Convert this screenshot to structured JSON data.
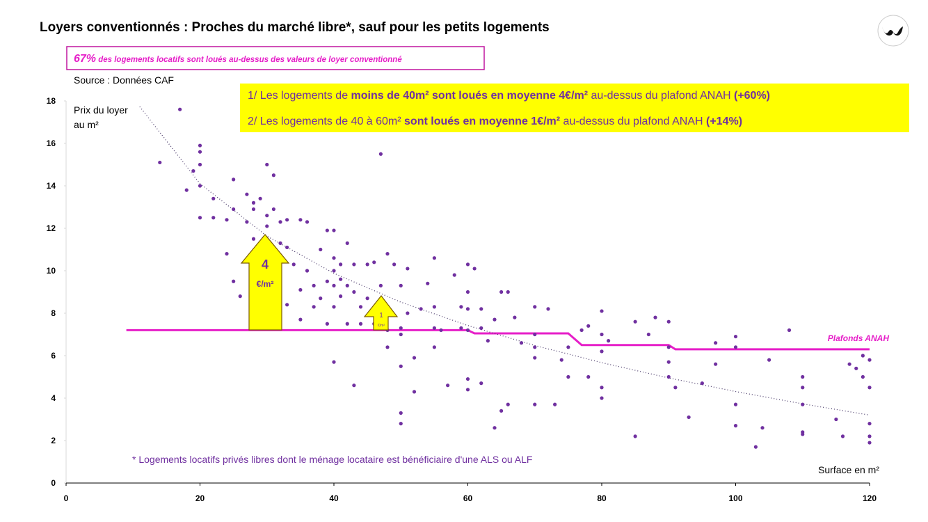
{
  "chart_data": {
    "type": "scatter",
    "title": "Loyers conventionnés : Proches du marché libre*, sauf pour les petits logements",
    "banner": {
      "highlight": "67%",
      "text": " des logements locatifs sont loués au-dessus des valeurs de loyer conventionné"
    },
    "source": "Source : Données CAF",
    "callout": [
      [
        "1/ Les logements de ",
        "moins de 40m² sont loués en moyenne 4€/m²",
        " au-dessus du plafond ANAH ",
        "(+60%)"
      ],
      [
        "2/ Les logements de 40 à 60m² ",
        "sont loués en moyenne 1€/m²",
        " au-dessus du plafond ANAH ",
        "(+14%)"
      ]
    ],
    "arrows": [
      {
        "value": "4",
        "unit": "€/m²"
      },
      {
        "value": "1",
        "unit": "€/m²"
      }
    ],
    "footnote": "* Logements locatifs privés libres dont le ménage locataire est bénéficiaire d'une ALS ou ALF",
    "y_label": [
      "Prix du loyer",
      "au m²"
    ],
    "x_label": "Surface en m²",
    "color": "#7030a0",
    "x": [
      14,
      17,
      18,
      19,
      20,
      20,
      20,
      20,
      20,
      22,
      22,
      24,
      25,
      25,
      24,
      25,
      26,
      27,
      27,
      28,
      28,
      28,
      29,
      30,
      30,
      30,
      31,
      31,
      32,
      32,
      33,
      33,
      33,
      34,
      35,
      35,
      35,
      36,
      36,
      37,
      37,
      38,
      38,
      39,
      39,
      39,
      40,
      40,
      40,
      40,
      40,
      40,
      41,
      41,
      41,
      42,
      42,
      42,
      43,
      43,
      44,
      44,
      43,
      45,
      45,
      46,
      46,
      47,
      47,
      48,
      48,
      48,
      49,
      50,
      50,
      50,
      50,
      50,
      50,
      51,
      51,
      52,
      52,
      53,
      54,
      55,
      55,
      55,
      55,
      56,
      57,
      58,
      59,
      59,
      60,
      60,
      60,
      60,
      60,
      60,
      61,
      62,
      62,
      62,
      63,
      64,
      64,
      65,
      65,
      66,
      66,
      67,
      68,
      70,
      70,
      70,
      70,
      70,
      72,
      73,
      74,
      75,
      75,
      77,
      78,
      78,
      80,
      80,
      80,
      80,
      80,
      81,
      85,
      85,
      88,
      87,
      90,
      90,
      90,
      90,
      91,
      93,
      95,
      97,
      97,
      100,
      100,
      100,
      100,
      103,
      104,
      105,
      108,
      110,
      110,
      110,
      110,
      110,
      115,
      116,
      117,
      118,
      119,
      119,
      120,
      120,
      120,
      120,
      120
    ],
    "values": [
      15.1,
      17.6,
      13.8,
      14.7,
      15.9,
      15.6,
      15,
      14,
      12.5,
      13.4,
      12.5,
      12.4,
      14.3,
      12.9,
      10.8,
      9.5,
      8.8,
      13.6,
      12.3,
      13.2,
      12.9,
      11.5,
      13.4,
      15,
      12.6,
      12.1,
      14.5,
      12.9,
      12.3,
      11.3,
      12.4,
      11.1,
      8.4,
      10.3,
      12.4,
      9.1,
      7.7,
      12.3,
      10,
      9.3,
      8.3,
      11,
      8.7,
      11.9,
      9.5,
      7.5,
      11.9,
      10.6,
      10,
      9.3,
      8.3,
      5.7,
      10.3,
      9.6,
      8.8,
      11.3,
      9.3,
      7.5,
      10.3,
      9,
      8.3,
      7.5,
      4.6,
      10.3,
      8.7,
      10.4,
      7.5,
      15.5,
      9.3,
      10.8,
      7.2,
      6.4,
      10.3,
      9.3,
      7.3,
      7,
      5.5,
      3.3,
      2.8,
      10.1,
      8,
      5.9,
      4.3,
      8.2,
      9.4,
      10.6,
      8.3,
      7.3,
      6.4,
      7.2,
      4.6,
      9.8,
      8.3,
      7.3,
      10.3,
      9,
      8.2,
      7.2,
      4.9,
      4.4,
      10.1,
      8.2,
      7.3,
      4.7,
      6.7,
      7.7,
      2.6,
      9,
      3.4,
      9,
      3.7,
      7.8,
      6.6,
      8.3,
      7,
      6.4,
      5.9,
      3.7,
      8.2,
      3.7,
      5.8,
      6.4,
      5,
      7.2,
      7.4,
      5,
      8.1,
      7,
      6.2,
      4.5,
      4,
      6.7,
      7.6,
      2.2,
      7.8,
      7,
      7.6,
      6.4,
      5.7,
      5,
      4.5,
      3.1,
      4.7,
      6.6,
      5.6,
      6.9,
      6.4,
      3.7,
      2.7,
      1.7,
      2.6,
      5.8,
      7.2,
      5,
      4.5,
      3.7,
      2.4,
      2.3,
      3,
      2.2,
      5.6,
      5.4,
      5,
      6,
      5.8,
      4.5,
      2.8,
      2.2,
      1.9
    ],
    "lines": [
      {
        "name": "Plafonds ANAH",
        "color": "#e61ec8",
        "style": "solid",
        "x": [
          9,
          60,
          61,
          75,
          77,
          90,
          91,
          120
        ],
        "values": [
          7.2,
          7.2,
          7.05,
          7.05,
          6.5,
          6.5,
          6.3,
          6.3
        ]
      },
      {
        "color": "#4a3a6a",
        "style": "dotted",
        "x": [
          11,
          20,
          30,
          40,
          50,
          60,
          70,
          80,
          90,
          100,
          110,
          120
        ],
        "values": [
          17.73,
          14.1,
          11.63,
          9.88,
          8.52,
          7.42,
          6.48,
          5.67,
          4.95,
          4.31,
          3.73,
          3.2
        ]
      }
    ],
    "xlim": [
      0,
      120
    ],
    "ylim": [
      0,
      18
    ],
    "xticks": [
      0,
      20,
      40,
      60,
      80,
      100,
      120
    ],
    "yticks": [
      0,
      2,
      4,
      6,
      8,
      10,
      12,
      14,
      16,
      18
    ]
  }
}
